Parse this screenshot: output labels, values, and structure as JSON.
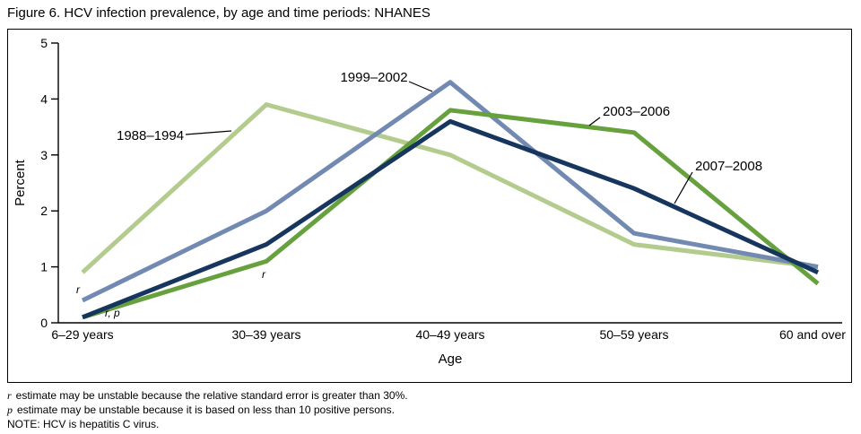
{
  "title": "Figure 6. HCV infection prevalence, by age and time periods: NHANES",
  "chart_data": {
    "type": "line",
    "categories": [
      "6–29 years",
      "30–39 years",
      "40–49 years",
      "50–59 years",
      "60 and over"
    ],
    "xlabel": "Age",
    "ylabel": "Percent",
    "ylim": [
      0,
      5
    ],
    "yticks": [
      0,
      1,
      2,
      3,
      4,
      5
    ],
    "grid": false,
    "legend_position": "inline-labels",
    "series": [
      {
        "name": "1988–1994",
        "color": "#b3cc8e",
        "values": [
          0.9,
          3.9,
          3.0,
          1.4,
          1.0
        ]
      },
      {
        "name": "1999–2002",
        "color": "#7289b2",
        "values": [
          0.4,
          2.0,
          4.3,
          1.6,
          1.0
        ]
      },
      {
        "name": "2003–2006",
        "color": "#67a13d",
        "values": [
          0.1,
          1.1,
          3.8,
          3.4,
          0.7
        ]
      },
      {
        "name": "2007–2008",
        "color": "#17365e",
        "values": [
          0.1,
          1.4,
          3.6,
          2.4,
          0.9
        ]
      }
    ],
    "annotations": [
      {
        "text": "r"
      },
      {
        "text": "r, p"
      },
      {
        "text": "r"
      }
    ]
  },
  "footnotes": [
    {
      "symbol": "r",
      "text": "estimate may be unstable because the relative standard error is greater than 30%."
    },
    {
      "symbol": "p",
      "text": "estimate may be unstable because it is based on less than 10 positive persons."
    }
  ],
  "note": "NOTE: HCV is hepatitis C virus."
}
